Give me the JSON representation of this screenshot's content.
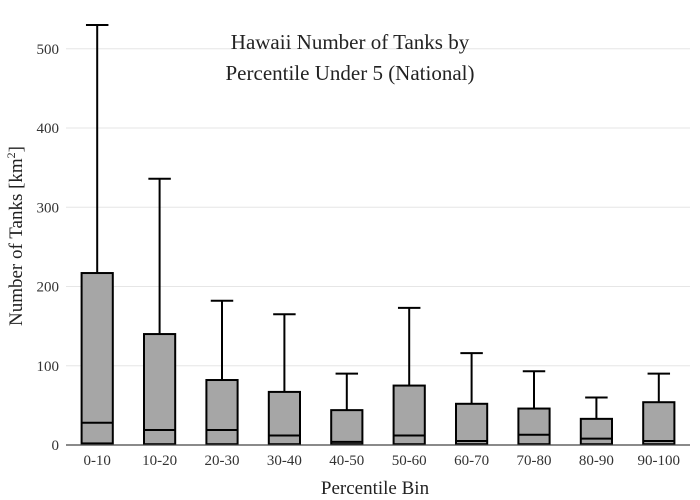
{
  "chart_data": {
    "type": "box",
    "title_lines": [
      "Hawaii Number of Tanks by",
      "Percentile Under 5 (National)"
    ],
    "xlabel": "Percentile Bin",
    "ylabel_main": "Number of Tanks  [km",
    "ylabel_sup": "2",
    "ylabel_end": "]",
    "ylim": [
      0,
      530
    ],
    "yticks": [
      0,
      100,
      200,
      300,
      400,
      500
    ],
    "ytick_labels": [
      "0",
      "100",
      "200",
      "300",
      "400",
      "500"
    ],
    "grid": true,
    "colors": {
      "box_fill": "#a6a6a6",
      "outline": "#000000",
      "grid": "#e6e6e6"
    },
    "categories": [
      "0-10",
      "10-20",
      "20-30",
      "30-40",
      "40-50",
      "50-60",
      "60-70",
      "70-80",
      "80-90",
      "90-100"
    ],
    "boxes": [
      {
        "min": 0,
        "q1": 2,
        "median": 28,
        "q3": 217,
        "max": 530
      },
      {
        "min": 0,
        "q1": 1,
        "median": 19,
        "q3": 140,
        "max": 336
      },
      {
        "min": 0,
        "q1": 1,
        "median": 19,
        "q3": 82,
        "max": 182
      },
      {
        "min": 0,
        "q1": 1,
        "median": 12,
        "q3": 67,
        "max": 165
      },
      {
        "min": 0,
        "q1": 1,
        "median": 4,
        "q3": 44,
        "max": 90
      },
      {
        "min": 0,
        "q1": 1,
        "median": 12,
        "q3": 75,
        "max": 173
      },
      {
        "min": 0,
        "q1": 1,
        "median": 5,
        "q3": 52,
        "max": 116
      },
      {
        "min": 0,
        "q1": 1,
        "median": 13,
        "q3": 46,
        "max": 93
      },
      {
        "min": 0,
        "q1": 1,
        "median": 8,
        "q3": 33,
        "max": 60
      },
      {
        "min": 0,
        "q1": 1,
        "median": 5,
        "q3": 54,
        "max": 90
      }
    ]
  }
}
